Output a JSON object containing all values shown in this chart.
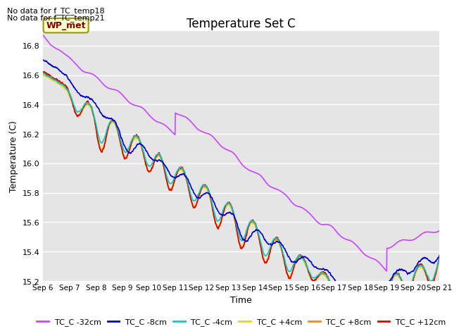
{
  "title": "Temperature Set C",
  "xlabel": "Time",
  "ylabel": "Temperature (C)",
  "ylim": [
    15.2,
    16.9
  ],
  "xlim": [
    0,
    15
  ],
  "background_color": "#e5e5e5",
  "annotations": [
    "No data for f_TC_temp18",
    "No data for f_TC_temp21"
  ],
  "wp_met_label": "WP_met",
  "x_tick_labels": [
    "Sep 6",
    "Sep 7",
    "Sep 8",
    "Sep 9",
    "Sep 10",
    "Sep 11",
    "Sep 12",
    "Sep 13",
    "Sep 14",
    "Sep 15",
    "Sep 16",
    "Sep 17",
    "Sep 18",
    "Sep 19",
    "Sep 20",
    "Sep 21"
  ],
  "legend_labels": [
    "TC_C -32cm",
    "TC_C -8cm",
    "TC_C -4cm",
    "TC_C +4cm",
    "TC_C +8cm",
    "TC_C +12cm"
  ],
  "legend_colors": [
    "#cc44ff",
    "#0000cc",
    "#00cccc",
    "#dddd00",
    "#ff8800",
    "#dd0000"
  ],
  "yticks": [
    15.2,
    15.4,
    15.6,
    15.8,
    16.0,
    16.2,
    16.4,
    16.6,
    16.8
  ]
}
